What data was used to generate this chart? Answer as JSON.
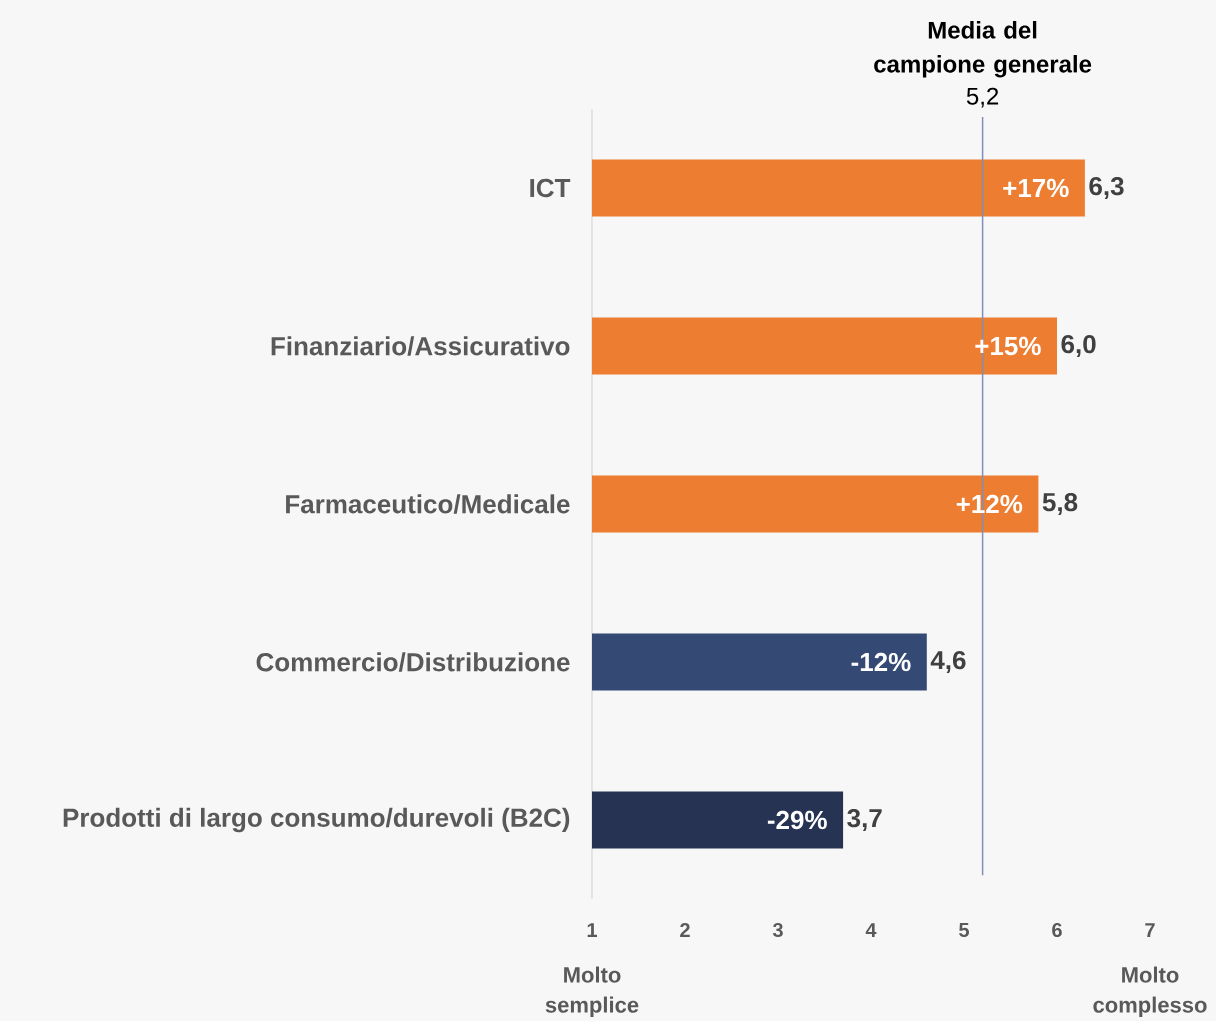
{
  "chart_data": {
    "type": "bar",
    "orientation": "horizontal",
    "categories": [
      "ICT",
      "Finanziario/Assicurativo",
      "Farmaceutico/Medicale",
      "Commercio/Distribuzione",
      "Prodotti di largo consumo/durevoli (B2C)"
    ],
    "values": [
      6.3,
      6.0,
      5.8,
      4.6,
      3.7
    ],
    "colors": [
      "#ed7d31",
      "#ed7d31",
      "#ed7d31",
      "#344a75",
      "#263352"
    ],
    "value_labels": [
      "6,3",
      "6,0",
      "5,8",
      "4,6",
      "3,7"
    ],
    "xlim": [
      1,
      7
    ],
    "xticks": [
      1,
      2,
      3,
      4,
      5,
      6,
      7
    ],
    "ref_lines": [
      {
        "axis": "x",
        "value": 5.2,
        "label": "Media del campione generale",
        "color": "#7f8fb8"
      }
    ],
    "annotations": [
      {
        "text": "+17%",
        "x": 6.3,
        "y": "ICT"
      },
      {
        "text": "+15%",
        "x": 6.0,
        "y": "Finanziario/Assicurativo"
      },
      {
        "text": "+12%",
        "x": 5.8,
        "y": "Farmaceutico/Medicale"
      },
      {
        "text": "-12%",
        "x": 4.6,
        "y": "Commercio/Distribuzione"
      },
      {
        "text": "-29%",
        "x": 3.7,
        "y": "Prodotti di largo consumo/durevoli (B2C)"
      },
      "5,2",
      "Molto semplice",
      "Molto complesso"
    ]
  }
}
